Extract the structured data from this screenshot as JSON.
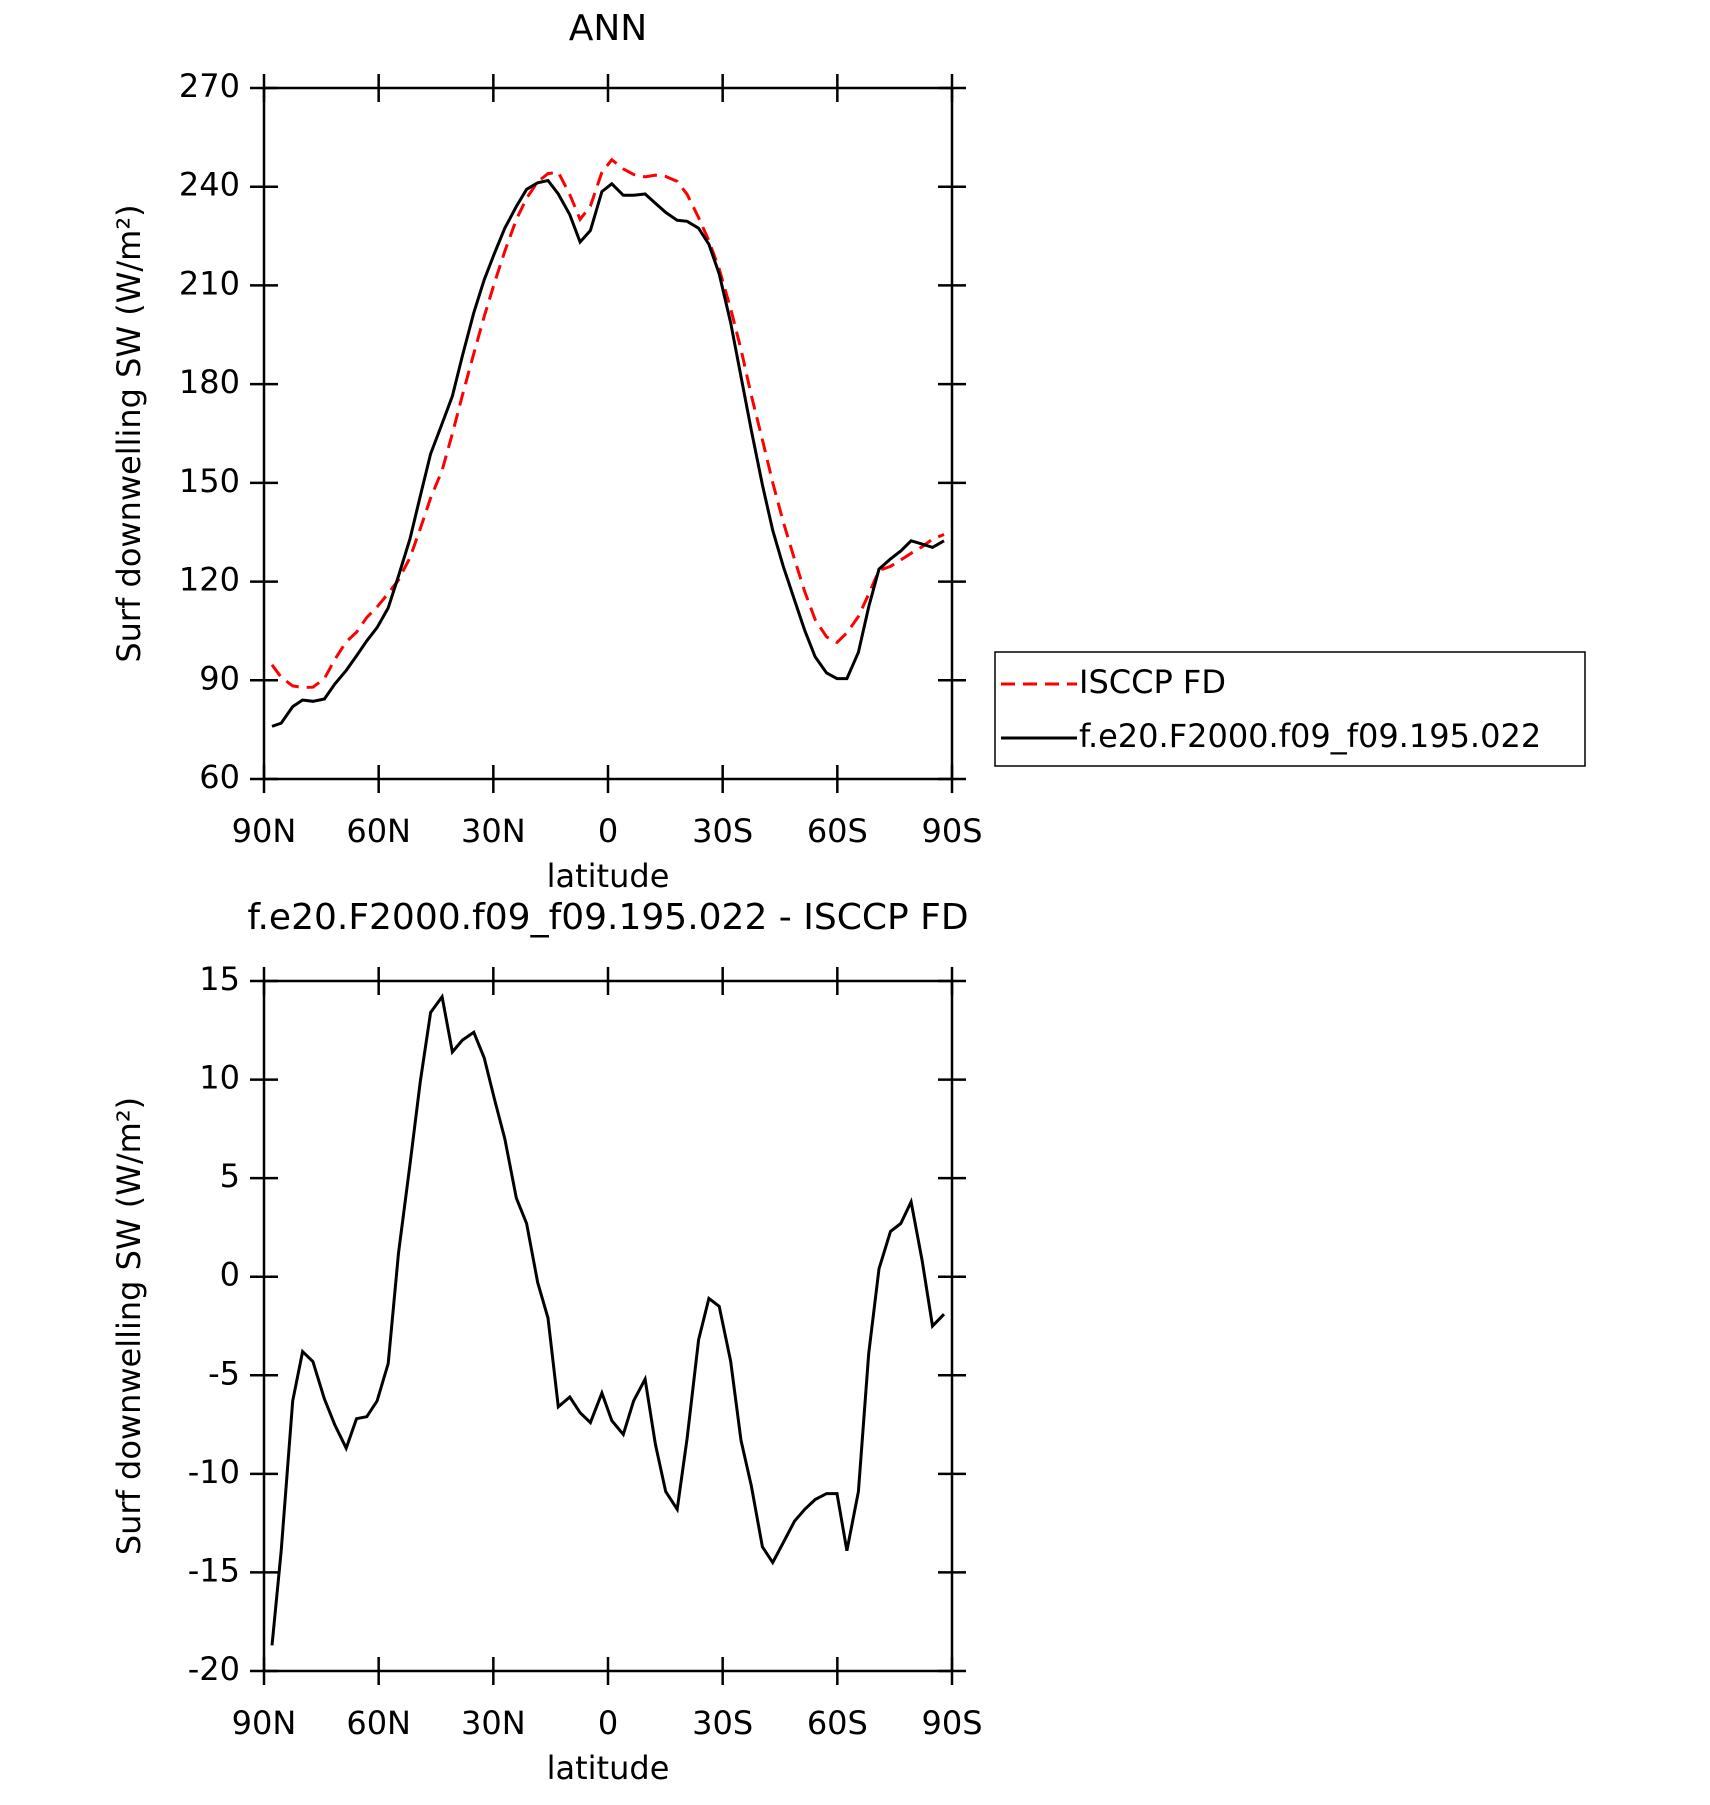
{
  "chart_data": [
    {
      "type": "line",
      "title": "ANN",
      "xlabel": "latitude",
      "ylabel": "Surf downwelling SW (W/m²)",
      "x": [
        87.9,
        85.5,
        82.5,
        79.9,
        77.2,
        74.2,
        71.5,
        68.5,
        65.8,
        63.1,
        60.4,
        57.5,
        54.8,
        51.8,
        49.1,
        46.4,
        43.4,
        40.7,
        38.1,
        35.1,
        32.4,
        29.7,
        27.0,
        24.0,
        21.3,
        18.4,
        15.7,
        13.0,
        10.0,
        7.3,
        4.6,
        1.6,
        -1.0,
        -4.0,
        -6.7,
        -9.7,
        -12.4,
        -15.1,
        -18.1,
        -20.7,
        -23.7,
        -26.4,
        -29.1,
        -32.1,
        -34.8,
        -37.5,
        -40.4,
        -43.1,
        -45.8,
        -48.8,
        -51.5,
        -54.2,
        -57.2,
        -59.9,
        -62.5,
        -65.5,
        -68.2,
        -70.9,
        -73.9,
        -76.6,
        -79.3,
        -82.2,
        -84.9,
        -87.9
      ],
      "series": [
        {
          "name": "ISCCP FD",
          "color": "#ff0000",
          "dashed": true,
          "values": [
            94.7,
            90.9,
            88.3,
            87.8,
            87.9,
            90.5,
            96.3,
            101.7,
            104.6,
            109.1,
            112.3,
            116.4,
            120.5,
            127.3,
            136.1,
            145.4,
            153.8,
            165.0,
            176.6,
            189.3,
            200.6,
            210.8,
            220.4,
            230.0,
            236.5,
            241.5,
            244.0,
            244.4,
            237.6,
            230.1,
            234.1,
            244.4,
            248.2,
            245.4,
            243.7,
            243.0,
            243.5,
            243.1,
            241.6,
            237.7,
            230.6,
            223.6,
            215.0,
            202.9,
            190.6,
            176.6,
            163.1,
            150.1,
            138.3,
            126.8,
            116.9,
            108.4,
            103.2,
            101.5,
            104.4,
            109.4,
            116.2,
            123.4,
            124.6,
            126.6,
            128.6,
            130.6,
            132.9,
            134.3
          ]
        },
        {
          "name": "f.e20.F2000.f09_f09.195.022",
          "color": "#000000",
          "dashed": false,
          "values": [
            76,
            77,
            82,
            84,
            83.6,
            84.3,
            88.8,
            93,
            97.4,
            102,
            106,
            112,
            121.7,
            133,
            146,
            158.8,
            168,
            176.4,
            188.6,
            201.7,
            211.7,
            219.8,
            227.4,
            234,
            239.2,
            241.2,
            241.9,
            237.8,
            231.5,
            223.2,
            226.7,
            238.5,
            240.9,
            237.4,
            237.4,
            237.8,
            235,
            232.2,
            229.8,
            229.5,
            227.4,
            222.5,
            213.5,
            198.6,
            182.3,
            166,
            149.4,
            135.6,
            124.8,
            114.4,
            105.1,
            97.1,
            92.2,
            90.5,
            90.5,
            98.5,
            112.3,
            123.8,
            126.9,
            129.3,
            132.4,
            131.4,
            130.4,
            132.4
          ]
        }
      ],
      "xlim": [
        90,
        -90
      ],
      "xticks": [
        {
          "value": 90,
          "label": "90N"
        },
        {
          "value": 60,
          "label": "60N"
        },
        {
          "value": 30,
          "label": "30N"
        },
        0,
        {
          "value": -30,
          "label": "30S"
        },
        {
          "value": -60,
          "label": "60S"
        },
        {
          "value": -90,
          "label": "90S"
        }
      ],
      "ylim": [
        60,
        270
      ],
      "yticks": [
        60,
        90,
        120,
        150,
        180,
        210,
        240,
        270
      ],
      "legend": "right"
    },
    {
      "type": "line",
      "title": "f.e20.F2000.f09_f09.195.022 - ISCCP FD",
      "xlabel": "latitude",
      "ylabel": "Surf downwelling SW (W/m²)",
      "x": [
        87.9,
        85.5,
        82.5,
        79.9,
        77.2,
        74.2,
        71.5,
        68.5,
        65.8,
        63.1,
        60.4,
        57.5,
        54.8,
        51.8,
        49.1,
        46.4,
        43.4,
        40.7,
        38.1,
        35.1,
        32.4,
        29.7,
        27.0,
        24.0,
        21.3,
        18.4,
        15.7,
        13.0,
        10.0,
        7.3,
        4.6,
        1.6,
        -1.0,
        -4.0,
        -6.7,
        -9.7,
        -12.4,
        -15.1,
        -18.1,
        -20.7,
        -23.7,
        -26.4,
        -29.1,
        -32.1,
        -34.8,
        -37.5,
        -40.4,
        -43.1,
        -45.8,
        -48.8,
        -51.5,
        -54.2,
        -57.2,
        -59.9,
        -62.5,
        -65.5,
        -68.2,
        -70.9,
        -73.9,
        -76.6,
        -79.3,
        -82.2,
        -84.9,
        -87.9
      ],
      "values": [
        -18.7,
        -13.9,
        -6.3,
        -3.8,
        -4.3,
        -6.2,
        -7.5,
        -8.7,
        -7.2,
        -7.1,
        -6.3,
        -4.4,
        1.2,
        5.7,
        9.9,
        13.4,
        14.2,
        11.4,
        12.0,
        12.4,
        11.1,
        9.0,
        7.0,
        4.0,
        2.7,
        -0.3,
        -2.1,
        -6.6,
        -6.1,
        -6.9,
        -7.4,
        -5.9,
        -7.3,
        -8.0,
        -6.3,
        -5.2,
        -8.5,
        -10.9,
        -11.8,
        -8.2,
        -3.2,
        -1.1,
        -1.5,
        -4.3,
        -8.3,
        -10.6,
        -13.7,
        -14.5,
        -13.5,
        -12.4,
        -11.8,
        -11.3,
        -11.0,
        -11.0,
        -13.9,
        -10.9,
        -3.9,
        0.4,
        2.3,
        2.7,
        3.8,
        0.8,
        -2.5,
        -1.9
      ],
      "color": "#000000",
      "xlim": [
        90,
        -90
      ],
      "xticks": [
        {
          "value": 90,
          "label": "90N"
        },
        {
          "value": 60,
          "label": "60N"
        },
        {
          "value": 30,
          "label": "30N"
        },
        0,
        {
          "value": -30,
          "label": "30S"
        },
        {
          "value": -60,
          "label": "60S"
        },
        {
          "value": -90,
          "label": "90S"
        }
      ],
      "ylim": [
        -20,
        15
      ],
      "yticks": [
        -20,
        -15,
        -10,
        -5,
        0,
        5,
        10,
        15
      ]
    }
  ]
}
